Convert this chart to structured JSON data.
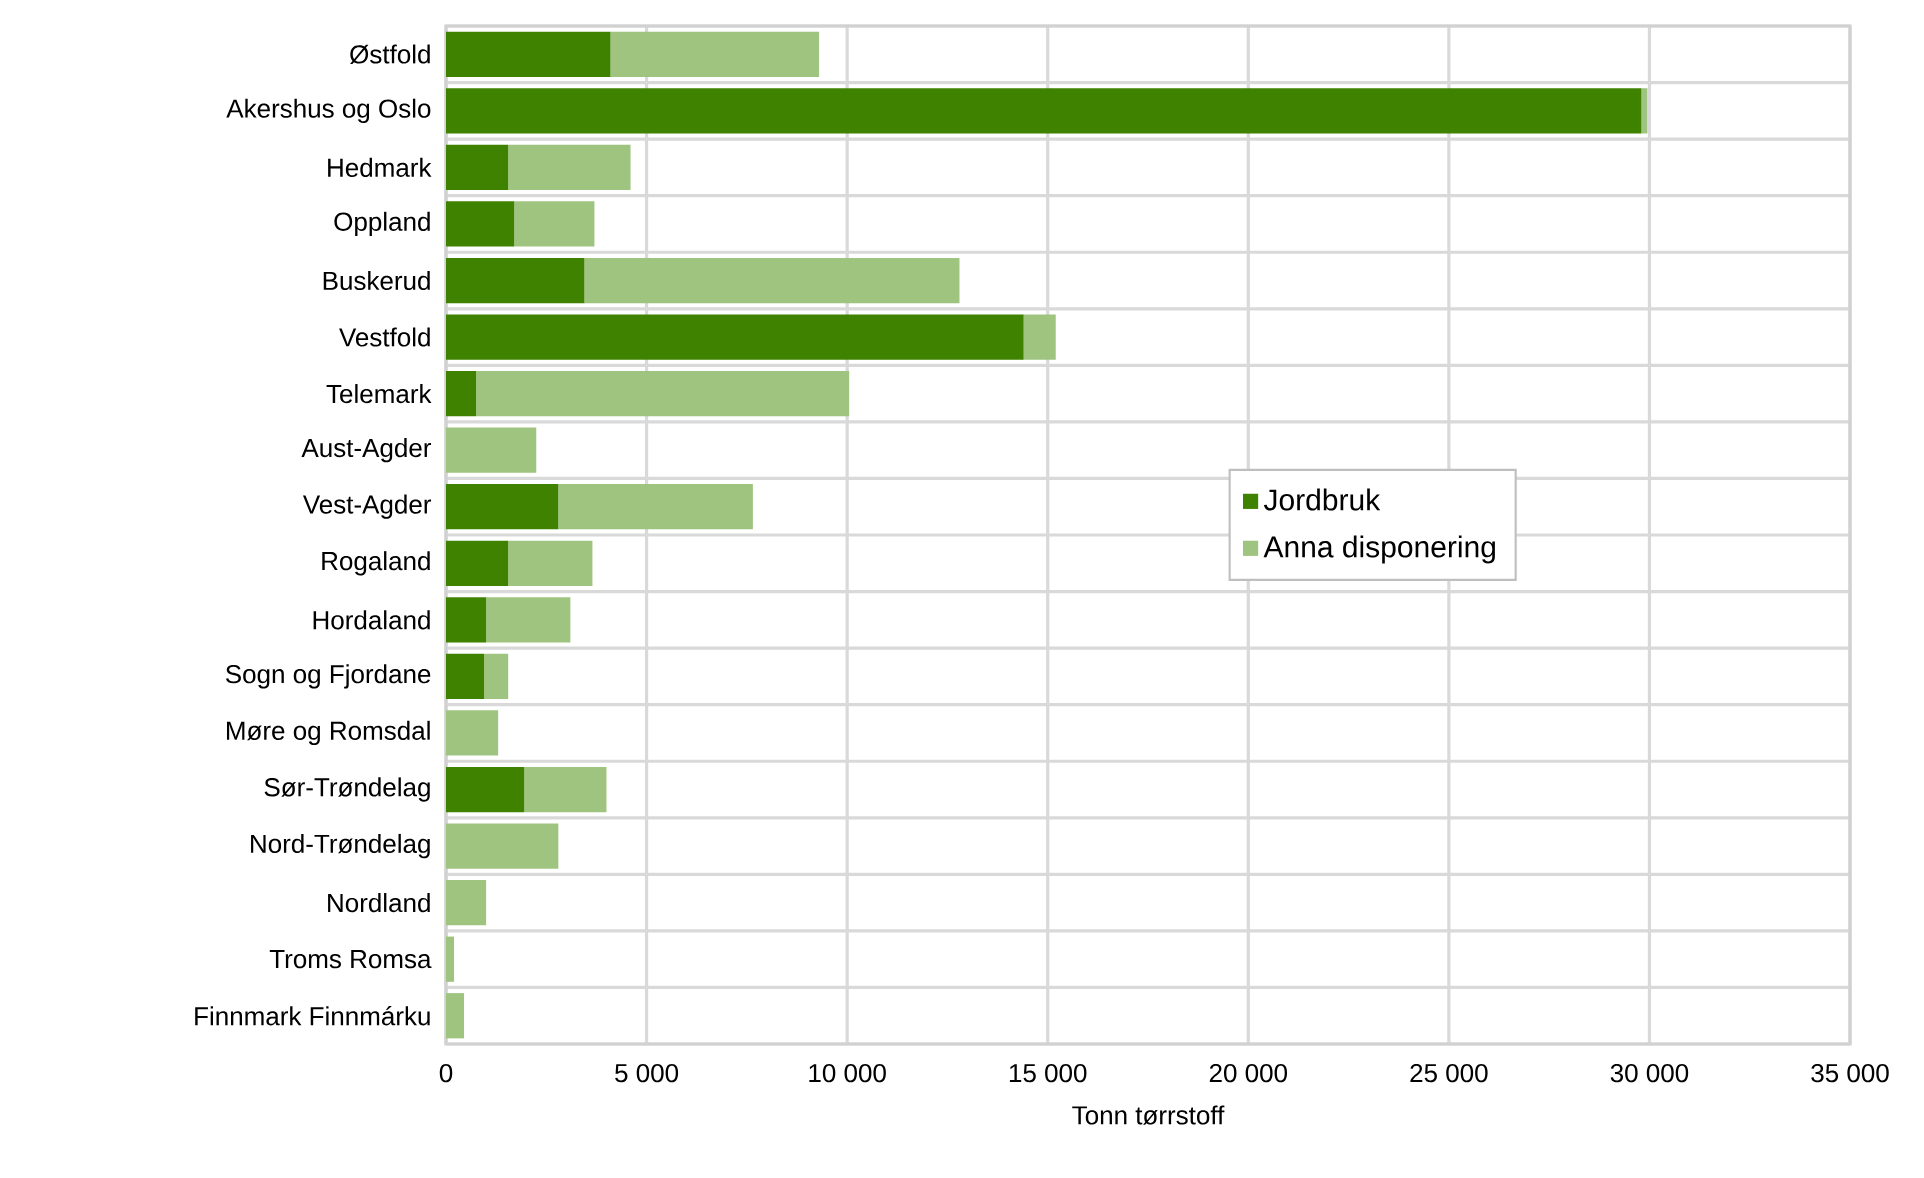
{
  "chart_data": {
    "type": "bar",
    "orientation": "horizontal",
    "stacked": true,
    "xlabel": "Tonn tørrstoff",
    "categories": [
      "Østfold",
      "Akershus og Oslo",
      "Hedmark",
      "Oppland",
      "Buskerud",
      "Vestfold",
      "Telemark",
      "Aust-Agder",
      "Vest-Agder",
      "Rogaland",
      "Hordaland",
      "Sogn og Fjordane",
      "Møre og Romsdal",
      "Sør-Trøndelag",
      "Nord-Trøndelag",
      "Nordland",
      "Troms Romsa",
      "Finnmark Finnmárku"
    ],
    "series": [
      {
        "name": "Jordbruk",
        "color": "#3f8200",
        "values": [
          4100,
          29800,
          1550,
          1700,
          3450,
          14400,
          750,
          0,
          2800,
          1550,
          1000,
          950,
          0,
          1950,
          0,
          0,
          0,
          0
        ]
      },
      {
        "name": "Anna disponering",
        "color": "#9fc480",
        "values": [
          5200,
          150,
          3050,
          2000,
          9350,
          800,
          9300,
          2250,
          4850,
          2100,
          2100,
          600,
          1300,
          2050,
          2800,
          1000,
          200,
          450
        ]
      }
    ],
    "xlim": [
      0,
      35000
    ],
    "xticks": [
      0,
      {
        "value": 5000,
        "label": "5 000"
      },
      {
        "value": 10000,
        "label": "10 000"
      },
      {
        "value": 15000,
        "label": "15 000"
      },
      {
        "value": 20000,
        "label": "20 000"
      },
      {
        "value": 25000,
        "label": "25 000"
      },
      {
        "value": 30000,
        "label": "30 000"
      },
      {
        "value": 35000,
        "label": "35 000"
      }
    ],
    "grid": true,
    "legend": "right"
  }
}
